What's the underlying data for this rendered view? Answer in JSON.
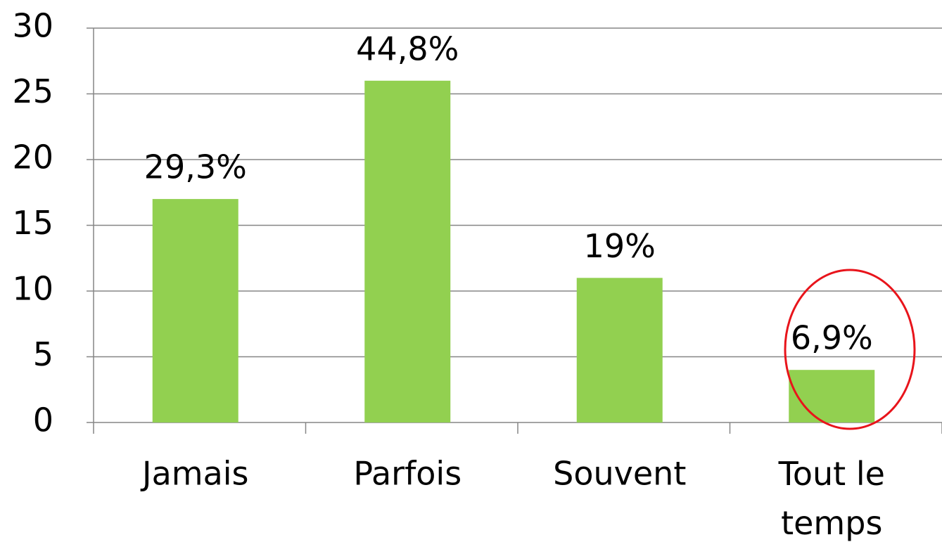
{
  "chart_data": {
    "type": "bar",
    "categories": [
      "Jamais",
      "Parfois",
      "Souvent",
      "Tout le temps"
    ],
    "values": [
      17,
      26,
      11,
      4
    ],
    "annotations": [
      "29,3%",
      "44,8%",
      "19%",
      "6,9%"
    ],
    "color": "#92d050",
    "ylim": [
      0,
      30
    ],
    "yticks": [
      0,
      5,
      10,
      15,
      20,
      25,
      30
    ],
    "grid": true
  }
}
